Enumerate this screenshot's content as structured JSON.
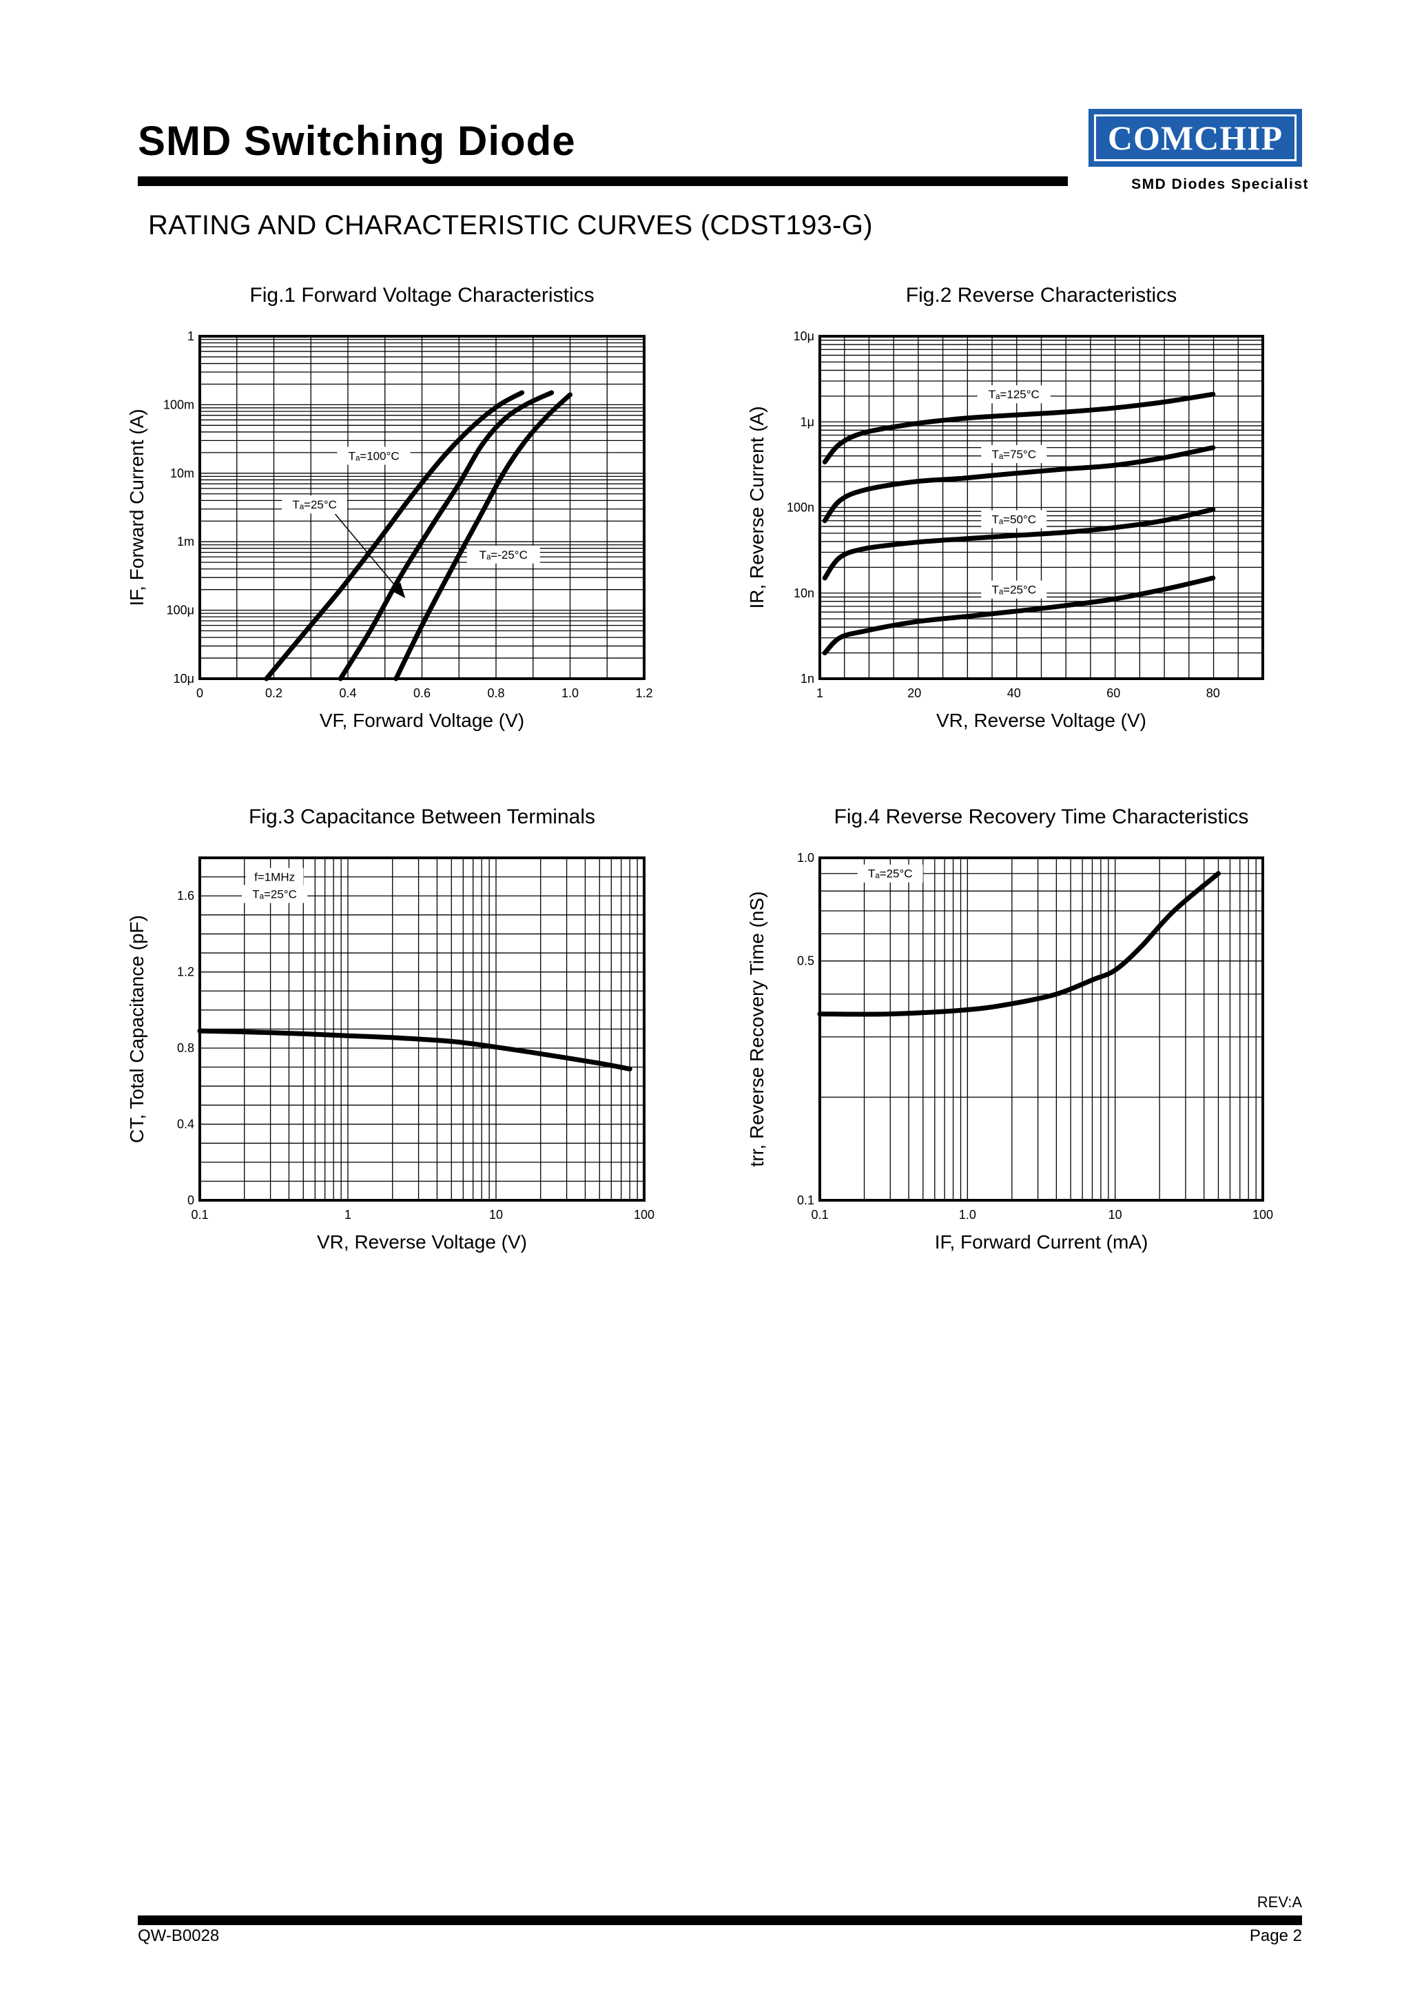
{
  "header": {
    "title": "SMD Switching Diode",
    "logo_text": "COMCHIP",
    "logo_tagline": "SMD Diodes Specialist",
    "brand_color": "#1f5fae"
  },
  "subtitle": "RATING AND CHARACTERISTIC CURVES (CDST193-G)",
  "footer": {
    "revision": "REV:A",
    "document_number": "QW-B0028",
    "page": "Page 2"
  },
  "chart_data": [
    {
      "id": "fig1",
      "type": "line",
      "title": "Fig.1 Forward Voltage Characteristics",
      "xlabel": "VF, Forward Voltage (V)",
      "ylabel": "IF, Forward Current (A)",
      "xscale": "linear",
      "yscale": "log",
      "xlim": [
        0,
        1.2
      ],
      "ylim": [
        1e-05,
        1
      ],
      "xticks": [
        0,
        0.2,
        0.4,
        0.6,
        0.8,
        1.0,
        1.2
      ],
      "xtick_labels": [
        "0",
        "0.2",
        "0.4",
        "0.6",
        "0.8",
        "1.0",
        "1.2"
      ],
      "yticks": [
        1e-05,
        0.0001,
        0.001,
        0.01,
        0.1,
        1
      ],
      "ytick_labels": [
        "10μ",
        "100μ",
        "1m",
        "10m",
        "100m",
        "1"
      ],
      "series": [
        {
          "name": "Ta=100°C",
          "label": "Tₐ=100°C",
          "x": [
            0.18,
            0.28,
            0.38,
            0.48,
            0.57,
            0.66,
            0.74,
            0.81,
            0.87
          ],
          "y": [
            1e-05,
            4.5e-05,
            0.0002,
            0.001,
            0.0045,
            0.018,
            0.05,
            0.1,
            0.15
          ]
        },
        {
          "name": "Ta=25°C",
          "label": "Tₐ=25°C",
          "x": [
            0.38,
            0.46,
            0.54,
            0.62,
            0.7,
            0.76,
            0.82,
            0.88,
            0.95
          ],
          "y": [
            1e-05,
            5e-05,
            0.0003,
            0.0015,
            0.007,
            0.025,
            0.06,
            0.1,
            0.15
          ]
        },
        {
          "name": "Ta=-25°C",
          "label": "Tₐ=-25°C",
          "x": [
            0.53,
            0.6,
            0.68,
            0.75,
            0.82,
            0.88,
            0.94,
            1.0
          ],
          "y": [
            1e-05,
            6e-05,
            0.0004,
            0.002,
            0.01,
            0.03,
            0.07,
            0.14
          ]
        }
      ],
      "annotations": [
        {
          "text": "Tₐ=100°C",
          "x": 0.47,
          "y": 0.018
        },
        {
          "text": "Tₐ=25°C",
          "x": 0.31,
          "y": 0.0035
        },
        {
          "text": "Tₐ=-25°C",
          "x": 0.82,
          "y": 0.00065
        }
      ]
    },
    {
      "id": "fig2",
      "type": "line",
      "title": "Fig.2 Reverse Characteristics",
      "xlabel": "VR, Reverse Voltage (V)",
      "ylabel": "IR, Reverse Current (A)",
      "xscale": "linear",
      "yscale": "log",
      "xlim": [
        1,
        90
      ],
      "ylim": [
        1e-09,
        1e-05
      ],
      "xticks": [
        1,
        20,
        40,
        60,
        80
      ],
      "xtick_labels": [
        "1",
        "20",
        "40",
        "60",
        "80"
      ],
      "yticks": [
        1e-09,
        1e-08,
        1e-07,
        1e-06,
        1e-05
      ],
      "ytick_labels": [
        "1n",
        "10n",
        "100n",
        "1μ",
        "10μ"
      ],
      "series": [
        {
          "name": "Ta=125°C",
          "label": "Tₐ=125°C",
          "x": [
            2,
            5,
            10,
            20,
            30,
            40,
            50,
            60,
            70,
            80
          ],
          "y": [
            3.4e-07,
            5.5e-07,
            7.5e-07,
            9.5e-07,
            1.1e-06,
            1.2e-06,
            1.3e-06,
            1.45e-06,
            1.7e-06,
            2.1e-06
          ]
        },
        {
          "name": "Ta=75°C",
          "label": "Tₐ=75°C",
          "x": [
            2,
            5,
            10,
            20,
            30,
            40,
            50,
            60,
            70,
            80
          ],
          "y": [
            7e-08,
            1.2e-07,
            1.6e-07,
            2e-07,
            2.2e-07,
            2.5e-07,
            2.8e-07,
            3.1e-07,
            3.8e-07,
            5e-07
          ]
        },
        {
          "name": "Ta=50°C",
          "label": "Tₐ=50°C",
          "x": [
            2,
            5,
            10,
            20,
            30,
            40,
            50,
            60,
            70,
            80
          ],
          "y": [
            1.5e-08,
            2.6e-08,
            3.3e-08,
            3.9e-08,
            4.3e-08,
            4.7e-08,
            5.1e-08,
            5.8e-08,
            7e-08,
            9.5e-08
          ]
        },
        {
          "name": "Ta=25°C",
          "label": "Tₐ=25°C",
          "x": [
            2,
            5,
            10,
            20,
            30,
            40,
            50,
            60,
            70,
            80
          ],
          "y": [
            2e-09,
            3e-09,
            3.6e-09,
            4.6e-09,
            5.3e-09,
            6.1e-09,
            7.1e-09,
            8.5e-09,
            1.1e-08,
            1.5e-08
          ]
        }
      ],
      "annotations": [
        {
          "text": "Tₐ=125°C",
          "x": 40,
          "y": 2.1e-06
        },
        {
          "text": "Tₐ=75°C",
          "x": 40,
          "y": 4.2e-07
        },
        {
          "text": "Tₐ=50°C",
          "x": 40,
          "y": 7.3e-08
        },
        {
          "text": "Tₐ=25°C",
          "x": 40,
          "y": 1.1e-08
        }
      ]
    },
    {
      "id": "fig3",
      "type": "line",
      "title": "Fig.3 Capacitance Between Terminals",
      "xlabel": "VR, Reverse Voltage (V)",
      "ylabel": "CT, Total Capacitance (pF)",
      "xscale": "log",
      "yscale": "linear",
      "xlim": [
        0.1,
        100
      ],
      "ylim": [
        0,
        1.8
      ],
      "xticks": [
        0.1,
        1,
        10,
        100
      ],
      "xtick_labels": [
        "0.1",
        "1",
        "10",
        "100"
      ],
      "yticks": [
        0,
        0.4,
        0.8,
        1.2,
        1.6
      ],
      "ytick_labels": [
        "0",
        "0.4",
        "0.8",
        "1.2",
        "1.6"
      ],
      "series": [
        {
          "name": "CT",
          "x": [
            0.1,
            0.2,
            0.5,
            1,
            2,
            5,
            10,
            20,
            50,
            80
          ],
          "y": [
            0.89,
            0.885,
            0.875,
            0.865,
            0.855,
            0.835,
            0.805,
            0.77,
            0.72,
            0.69
          ]
        }
      ],
      "annotations": [
        {
          "text": "f=1MHz",
          "x": 0.32,
          "y": 1.7
        },
        {
          "text": "Tₐ=25°C",
          "x": 0.32,
          "y": 1.61
        }
      ]
    },
    {
      "id": "fig4",
      "type": "line",
      "title": "Fig.4 Reverse Recovery Time Characteristics",
      "xlabel": "IF, Forward Current (mA)",
      "ylabel": "trr, Reverse Recovery Time (nS)",
      "xscale": "log",
      "yscale": "log",
      "xlim": [
        0.1,
        100
      ],
      "ylim": [
        0.1,
        1.0
      ],
      "xticks": [
        0.1,
        1,
        10,
        100
      ],
      "xtick_labels": [
        "0.1",
        "1.0",
        "10",
        "100"
      ],
      "yticks": [
        0.1,
        0.5,
        1.0
      ],
      "ytick_labels": [
        "0.1",
        "0.5",
        "1.0"
      ],
      "series": [
        {
          "name": "trr",
          "x": [
            0.1,
            0.3,
            1,
            2,
            4,
            7,
            10,
            15,
            25,
            50
          ],
          "y": [
            0.35,
            0.35,
            0.36,
            0.375,
            0.4,
            0.44,
            0.47,
            0.55,
            0.7,
            0.9
          ]
        }
      ],
      "annotations": [
        {
          "text": "Tₐ=25°C",
          "x": 0.3,
          "y": 0.9
        }
      ]
    }
  ]
}
